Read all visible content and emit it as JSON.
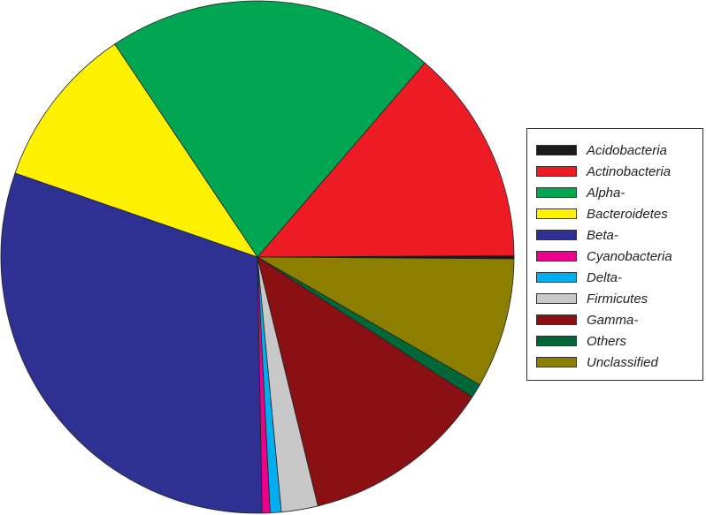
{
  "chart_data": {
    "type": "pie",
    "direction": "counterclockwise",
    "legend_position": "right",
    "slices": [
      {
        "label": "Acidobacteria",
        "value": 0.2,
        "color": "#1a1a1a"
      },
      {
        "label": "Actinobacteria",
        "value": 13.6,
        "color": "#ed1c24"
      },
      {
        "label": "Alpha-",
        "value": 20.7,
        "color": "#00a651"
      },
      {
        "label": "Bacteroidetes",
        "value": 10.3,
        "color": "#fff200"
      },
      {
        "label": "Beta-",
        "value": 30.6,
        "color": "#2e3192"
      },
      {
        "label": "Cyanobacteria",
        "value": 0.5,
        "color": "#ec008c"
      },
      {
        "label": "Delta-",
        "value": 0.7,
        "color": "#00aeef"
      },
      {
        "label": "Firmicutes",
        "value": 2.3,
        "color": "#c8c8c8"
      },
      {
        "label": "Gamma-",
        "value": 12.0,
        "color": "#8b1014"
      },
      {
        "label": "Others",
        "value": 0.9,
        "color": "#006838"
      },
      {
        "label": "Unclassified",
        "value": 8.2,
        "color": "#8c7f00"
      }
    ]
  }
}
